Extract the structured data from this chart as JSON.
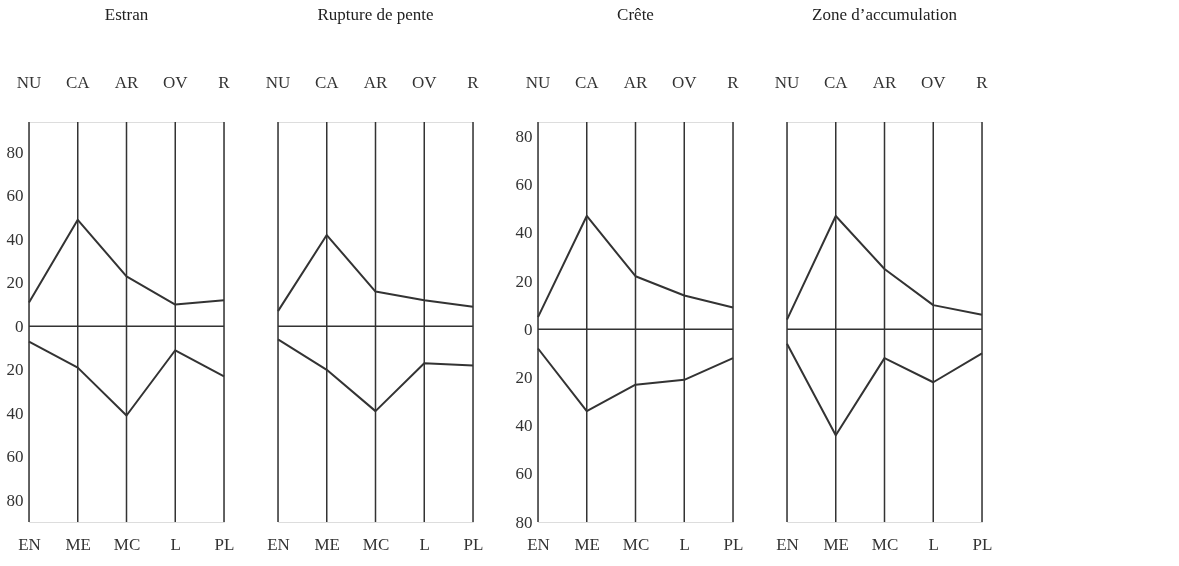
{
  "chart_data": [
    {
      "type": "line",
      "title": "Estran",
      "categories": [
        "EN",
        "ME",
        "MC",
        "L",
        "PL"
      ],
      "annotations": [
        "NU",
        "CA",
        "AR",
        "OV",
        "R"
      ],
      "ylim": [
        -90,
        94
      ],
      "yticks": [
        80,
        60,
        40,
        20,
        0,
        {
          "value": -20,
          "label": "20"
        },
        {
          "value": -40,
          "label": "40"
        },
        {
          "value": -60,
          "label": "60"
        },
        {
          "value": -80,
          "label": "80"
        }
      ],
      "grid": "x",
      "ref_lines": [
        {
          "axis": "y",
          "value": 0,
          "color": "#333333"
        }
      ],
      "series": [
        {
          "color": "#333333",
          "values": [
            11,
            49,
            23,
            10,
            12
          ]
        },
        {
          "color": "#333333",
          "values": [
            -7,
            -19,
            -41,
            -11,
            -23
          ]
        }
      ]
    },
    {
      "type": "line",
      "title": "Rupture de pente",
      "categories": [
        "EN",
        "ME",
        "MC",
        "L",
        "PL"
      ],
      "annotations": [
        "NU",
        "CA",
        "AR",
        "OV",
        "R"
      ],
      "ylim": [
        -90,
        94
      ],
      "tick_labels": "x",
      "grid": "x",
      "ref_lines": [
        {
          "axis": "y",
          "value": 0,
          "color": "#333333"
        }
      ],
      "series": [
        {
          "color": "#333333",
          "values": [
            7,
            42,
            16,
            12,
            9
          ]
        },
        {
          "color": "#333333",
          "values": [
            -6,
            -20,
            -39,
            -17,
            -18
          ]
        }
      ]
    },
    {
      "type": "line",
      "title": "Crête",
      "categories": [
        "EN",
        "ME",
        "MC",
        "L",
        "PL"
      ],
      "annotations": [
        "NU",
        "CA",
        "AR",
        "OV",
        "R"
      ],
      "ylim": [
        -80,
        86
      ],
      "yticks": [
        80,
        60,
        40,
        20,
        0,
        {
          "value": -20,
          "label": "20"
        },
        {
          "value": -40,
          "label": "40"
        },
        {
          "value": -60,
          "label": "60"
        },
        {
          "value": -80,
          "label": "80"
        }
      ],
      "grid": "x",
      "ref_lines": [
        {
          "axis": "y",
          "value": 0,
          "color": "#333333"
        }
      ],
      "series": [
        {
          "color": "#333333",
          "values": [
            5,
            47,
            22,
            14,
            9
          ]
        },
        {
          "color": "#333333",
          "values": [
            -8,
            -34,
            -23,
            -21,
            -12
          ]
        }
      ]
    },
    {
      "type": "line",
      "title": "Zone d’accumulation",
      "categories": [
        "EN",
        "ME",
        "MC",
        "L",
        "PL"
      ],
      "annotations": [
        "NU",
        "CA",
        "AR",
        "OV",
        "R"
      ],
      "ylim": [
        -80,
        86
      ],
      "tick_labels": "x",
      "grid": "x",
      "ref_lines": [
        {
          "axis": "y",
          "value": 0,
          "color": "#333333"
        }
      ],
      "series": [
        {
          "color": "#333333",
          "values": [
            4,
            47,
            25,
            10,
            6
          ]
        },
        {
          "color": "#333333",
          "values": [
            -6,
            -44,
            -12,
            -22,
            -10
          ]
        }
      ]
    }
  ]
}
